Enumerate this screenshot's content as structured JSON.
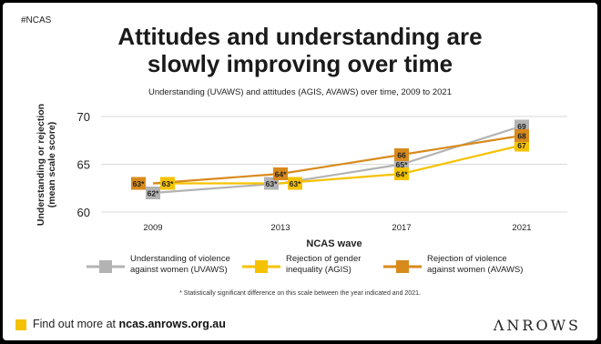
{
  "tag": "#NCAS",
  "title_line1": "Attitudes and understanding are",
  "title_line2": "slowly improving over time",
  "subtitle": "Understanding (UVAWS) and attitudes (AGIS, AVAWS) over time, 2009 to 2021",
  "footnote": "* Statistically significant difference on this scale between the year indicated and 2021.",
  "cta_prefix": "Find out more at ",
  "cta_link": "ncas.anrows.org.au",
  "logo": "ΛNROWS",
  "colors": {
    "uvaws": "#b3b3b3",
    "agis": "#f5c200",
    "avaws": "#d88a1c",
    "cta": "#f5c200"
  },
  "chart_data": {
    "type": "line",
    "ylabel_line1": "Understanding or rejection",
    "ylabel_line2": "(mean scale score)",
    "xlabel": "NCAS wave",
    "ylim": [
      60,
      70
    ],
    "yticks": [
      60,
      65,
      70
    ],
    "categories": [
      "2009",
      "2013",
      "2017",
      "2021"
    ],
    "grid": true,
    "legend_position": "bottom",
    "series": [
      {
        "key": "uvaws",
        "name_line1": "Understanding of violence",
        "name_line2": "against women (UVAWS)",
        "values": [
          62,
          63,
          65,
          69
        ],
        "labels": [
          "62*",
          "63*",
          "65*",
          "69"
        ]
      },
      {
        "key": "agis",
        "name_line1": "Rejection of gender",
        "name_line2": "inequality (AGIS)",
        "values": [
          63,
          63,
          64,
          67
        ],
        "labels": [
          "63*",
          "63*",
          "64*",
          "67"
        ]
      },
      {
        "key": "avaws",
        "name_line1": "Rejection of violence",
        "name_line2": "against women (AVAWS)",
        "values": [
          63,
          64,
          66,
          68
        ],
        "labels": [
          "63*",
          "64*",
          "66",
          "68"
        ]
      }
    ]
  }
}
